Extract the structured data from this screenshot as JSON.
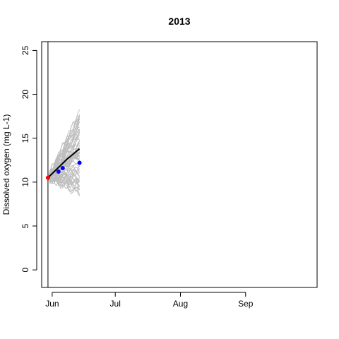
{
  "chart_data": {
    "type": "line",
    "title": "2013",
    "ylabel": "Dissolved oxygen (mg L-1)",
    "xlabel": "",
    "ylim": [
      -2,
      26
    ],
    "xlim": [
      "2013-05-27",
      "2013-10-05"
    ],
    "y_ticks": [
      0,
      5,
      10,
      15,
      20,
      25
    ],
    "x_ticks": [
      {
        "date": "2013-06-01",
        "label": "Jun"
      },
      {
        "date": "2013-07-01",
        "label": "Jul"
      },
      {
        "date": "2013-08-01",
        "label": "Aug"
      },
      {
        "date": "2013-09-01",
        "label": "Sep"
      }
    ],
    "vline": {
      "date": "2013-05-30",
      "color": "#000000"
    },
    "ensemble": {
      "color": "#bebebe",
      "member_count": 60,
      "start": {
        "date": "2013-05-30",
        "value": 10.5
      },
      "end_date": "2013-06-14",
      "end_min": 8.6,
      "end_max": 18.0
    },
    "mean_forecast": {
      "color": "#000000",
      "points": [
        {
          "date": "2013-05-30",
          "value": 10.5
        },
        {
          "date": "2013-06-02",
          "value": 11.2
        },
        {
          "date": "2013-06-05",
          "value": 11.9
        },
        {
          "date": "2013-06-08",
          "value": 12.6
        },
        {
          "date": "2013-06-11",
          "value": 13.2
        },
        {
          "date": "2013-06-14",
          "value": 13.8
        }
      ]
    },
    "initial_observation": {
      "color": "#ff0000",
      "date": "2013-05-30",
      "value": 10.5
    },
    "observations": {
      "color": "#0000ff",
      "points": [
        {
          "date": "2013-06-04",
          "value": 11.2
        },
        {
          "date": "2013-06-06",
          "value": 11.6
        },
        {
          "date": "2013-06-14",
          "value": 12.2
        }
      ]
    }
  }
}
